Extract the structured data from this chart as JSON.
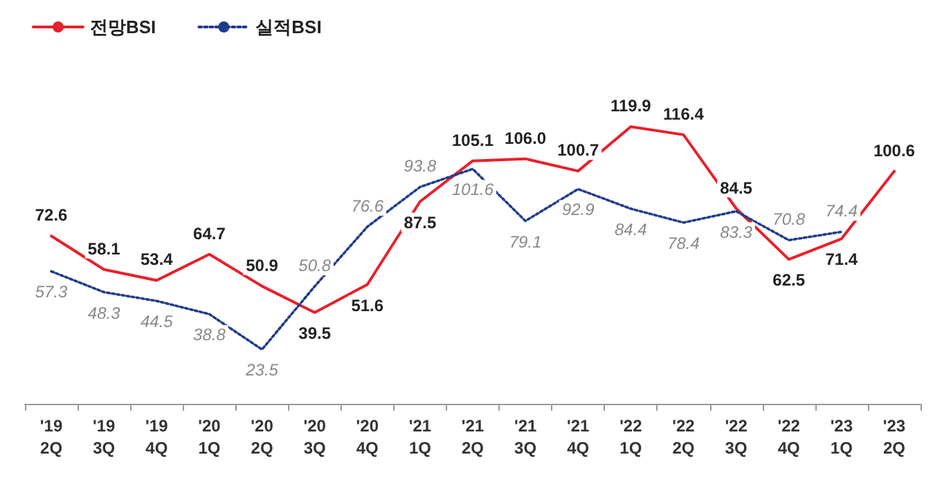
{
  "chart_data": {
    "type": "line",
    "categories": [
      "'19\n2Q",
      "'19\n3Q",
      "'19\n4Q",
      "'20\n1Q",
      "'20\n2Q",
      "'20\n3Q",
      "'20\n4Q",
      "'21\n1Q",
      "'21\n2Q",
      "'21\n3Q",
      "'21\n4Q",
      "'22\n1Q",
      "'22\n2Q",
      "'22\n3Q",
      "'22\n4Q",
      "'23\n1Q",
      "'23\n2Q"
    ],
    "series": [
      {
        "name": "전망BSI",
        "color": "#e8202a",
        "line_style": "solid",
        "values": [
          72.6,
          58.1,
          53.4,
          64.7,
          50.9,
          39.5,
          51.6,
          87.5,
          105.1,
          106.0,
          100.7,
          119.9,
          116.4,
          84.5,
          62.5,
          71.4,
          100.6
        ],
        "value_labels": [
          "72.6",
          "58.1",
          "53.4",
          "64.7",
          "50.9",
          "39.5",
          "51.6",
          "87.5",
          "105.1",
          "106.0",
          "100.7",
          "119.9",
          "116.4",
          "84.5",
          "62.5",
          "71.4",
          "100.6"
        ]
      },
      {
        "name": "실적BSI",
        "color": "#1f3c8c",
        "line_style": "dotted",
        "values": [
          57.3,
          48.3,
          44.5,
          38.8,
          23.5,
          50.8,
          76.6,
          93.8,
          101.6,
          79.1,
          92.9,
          84.4,
          78.4,
          83.3,
          70.8,
          74.4,
          null
        ],
        "value_labels": [
          "57.3",
          "48.3",
          "44.5",
          "38.8",
          "23.5",
          "50.8",
          "76.6",
          "93.8",
          "101.6",
          "79.1",
          "92.9",
          "84.4",
          "78.4",
          "83.3",
          "70.8",
          "74.4",
          null
        ]
      }
    ],
    "legend": "top left",
    "grid": false,
    "marker": "none",
    "tick_labels": "x"
  }
}
